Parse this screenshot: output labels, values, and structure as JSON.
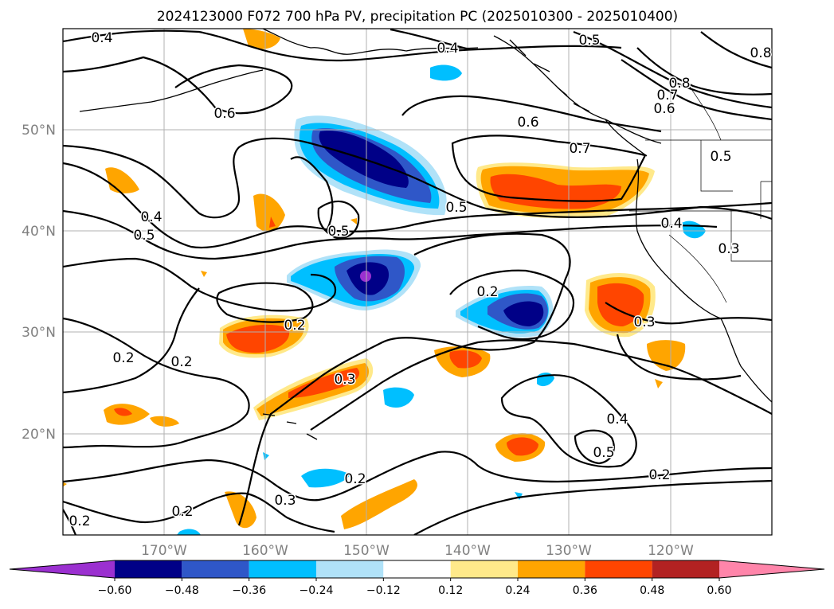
{
  "chart_data": {
    "type": "contour_map",
    "title": "2024123000 F072 700 hPa PV, precipitation PC (2025010300 - 2025010400)",
    "latitude_ticks": [
      "20°N",
      "30°N",
      "40°N",
      "50°N"
    ],
    "longitude_ticks": [
      "170°W",
      "160°W",
      "150°W",
      "140°W",
      "130°W",
      "120°W"
    ],
    "grid": true,
    "colorbar": {
      "orientation": "horizontal",
      "extend": "both",
      "tick_labels": [
        "−0.60",
        "−0.48",
        "−0.36",
        "−0.24",
        "−0.12",
        "0.12",
        "0.24",
        "0.36",
        "0.48",
        "0.60"
      ],
      "colors": [
        "#9b30d0",
        "#000087",
        "#2f57c8",
        "#00bfff",
        "#b0e2f8",
        "#ffffff",
        "#ffe98a",
        "#ffa500",
        "#ff4500",
        "#b22222",
        "#ff85aa"
      ]
    },
    "contour_labels": [
      "0.4",
      "0.5",
      "0.4",
      "0.8",
      "0.8",
      "0.7",
      "0.6",
      "0.6",
      "0.6",
      "0.7",
      "0.5",
      "0.4",
      "0.5",
      "0.5",
      "0.4",
      "0.5",
      "0.3",
      "0.2",
      "0.2",
      "0.3",
      "0.2",
      "0.2",
      "0.3",
      "0.4",
      "0.5",
      "0.2",
      "0.2",
      "0.3",
      "0.2",
      "0.2"
    ]
  }
}
